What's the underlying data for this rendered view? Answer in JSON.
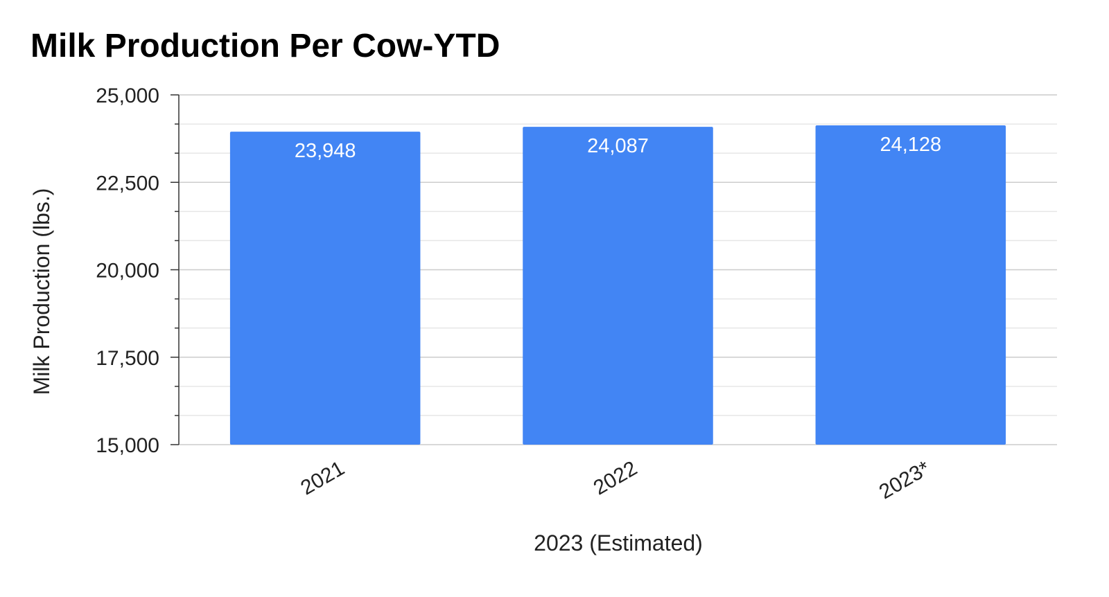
{
  "chart_data": {
    "type": "bar",
    "title": "Milk Production Per Cow-YTD",
    "xlabel": "2023 (Estimated)",
    "ylabel": "Milk Production (lbs.)",
    "categories": [
      "2021",
      "2022",
      "2023*"
    ],
    "values": [
      23948,
      24087,
      24128
    ],
    "data_labels": [
      "23,948",
      "24,087",
      "24,128"
    ],
    "ylim": [
      15000,
      25000
    ],
    "yticks": [
      15000,
      17500,
      20000,
      22500,
      25000
    ],
    "ytick_labels": [
      "15,000",
      "17,500",
      "20,000",
      "22,500",
      "25,000"
    ],
    "minor_gridlines": true,
    "grid": true,
    "legend": "none",
    "colors": {
      "bar": "#4285f4",
      "grid_major": "#cccccc",
      "grid_minor": "#e6e6e6",
      "axis": "#333333"
    }
  }
}
